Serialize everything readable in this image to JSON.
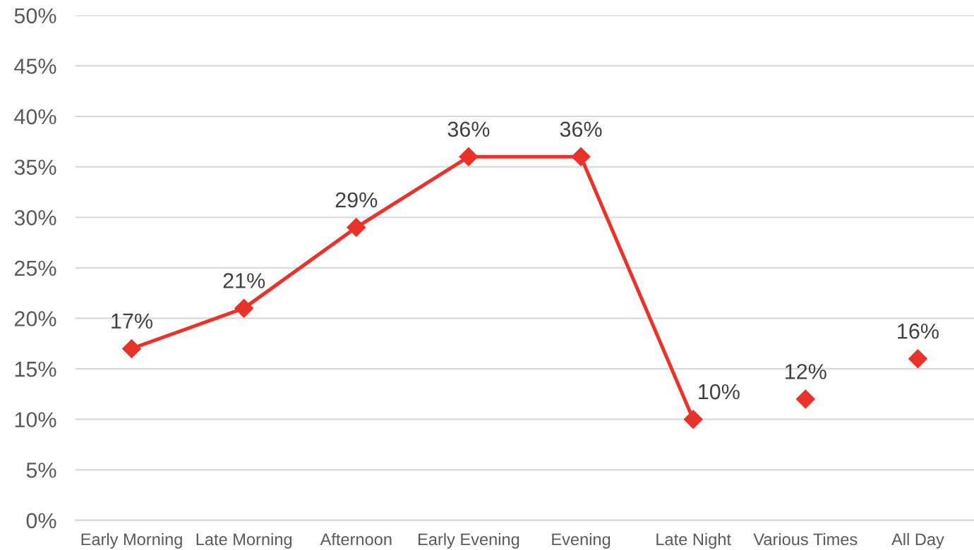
{
  "chart_data": {
    "type": "line",
    "categories": [
      "Early Morning",
      "Late Morning",
      "Afternoon",
      "Early Evening",
      "Evening",
      "Late Night",
      "Various Times",
      "All Day"
    ],
    "series": [
      {
        "color": "#e8322a",
        "values": [
          17,
          21,
          29,
          36,
          36,
          10,
          null,
          null
        ],
        "value_labels": [
          "17%",
          "21%",
          "29%",
          "36%",
          "36%",
          "10%",
          null,
          null
        ]
      },
      {
        "type": "scatter",
        "color": "#e8322a",
        "values": [
          null,
          null,
          null,
          null,
          null,
          null,
          12,
          16
        ],
        "value_labels": [
          null,
          null,
          null,
          null,
          null,
          null,
          "12%",
          "16%"
        ]
      }
    ],
    "ylim": [
      0,
      50
    ],
    "yticks": [
      {
        "value": 0,
        "label": "0%"
      },
      {
        "value": 5,
        "label": "5%"
      },
      {
        "value": 10,
        "label": "10%"
      },
      {
        "value": 15,
        "label": "15%"
      },
      {
        "value": 20,
        "label": "20%"
      },
      {
        "value": 25,
        "label": "25%"
      },
      {
        "value": 30,
        "label": "30%"
      },
      {
        "value": 35,
        "label": "35%"
      },
      {
        "value": 40,
        "label": "40%"
      },
      {
        "value": 45,
        "label": "45%"
      },
      {
        "value": 50,
        "label": "50%"
      }
    ],
    "grid": "y",
    "marker": "diamond",
    "line_style": "solid"
  }
}
